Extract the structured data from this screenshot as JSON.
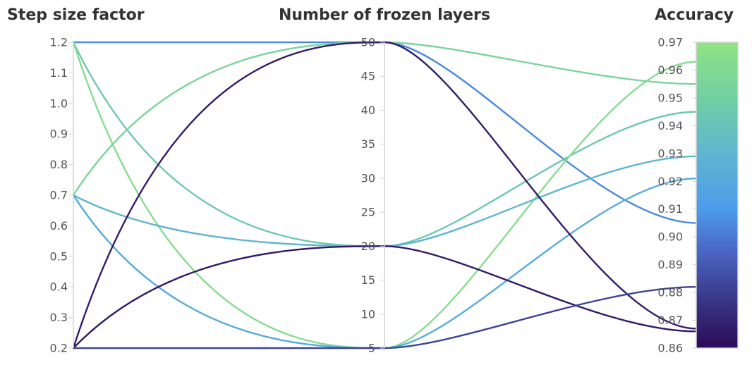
{
  "chart_data": {
    "type": "parallel-coordinates",
    "axes": [
      {
        "key": "step_size_factor",
        "label": "Step size factor",
        "range": [
          0.2,
          1.2
        ],
        "ticks": [
          "0.2",
          "0.3",
          "0.4",
          "0.5",
          "0.6",
          "0.7",
          "0.8",
          "0.9",
          "1.0",
          "1.1",
          "1.2"
        ]
      },
      {
        "key": "frozen_layers",
        "label": "Number of frozen layers",
        "range": [
          5,
          50
        ],
        "ticks": [
          "5",
          "10",
          "15",
          "20",
          "25",
          "30",
          "35",
          "40",
          "45",
          "50"
        ]
      },
      {
        "key": "accuracy",
        "label": "Accuracy",
        "range": [
          0.86,
          0.97
        ],
        "ticks": [
          "0.86",
          "0.87",
          "0.88",
          "0.89",
          "0.90",
          "0.91",
          "0.92",
          "0.93",
          "0.94",
          "0.95",
          "0.96",
          "0.97"
        ]
      }
    ],
    "color_scale": {
      "axis": "accuracy",
      "stops": [
        {
          "value": 0.86,
          "color": "#2c0a57"
        },
        {
          "value": 0.875,
          "color": "#36317f"
        },
        {
          "value": 0.895,
          "color": "#4a66c4"
        },
        {
          "value": 0.91,
          "color": "#4c9ceb"
        },
        {
          "value": 0.93,
          "color": "#5fb6cf"
        },
        {
          "value": 0.95,
          "color": "#72cfa2"
        },
        {
          "value": 0.97,
          "color": "#90e384"
        }
      ]
    },
    "runs": [
      {
        "step_size_factor": 1.2,
        "frozen_layers": 50,
        "accuracy": 0.905
      },
      {
        "step_size_factor": 1.2,
        "frozen_layers": 20,
        "accuracy": 0.945
      },
      {
        "step_size_factor": 1.2,
        "frozen_layers": 5,
        "accuracy": 0.963
      },
      {
        "step_size_factor": 0.7,
        "frozen_layers": 50,
        "accuracy": 0.955
      },
      {
        "step_size_factor": 0.7,
        "frozen_layers": 20,
        "accuracy": 0.929
      },
      {
        "step_size_factor": 0.7,
        "frozen_layers": 5,
        "accuracy": 0.921
      },
      {
        "step_size_factor": 0.2,
        "frozen_layers": 50,
        "accuracy": 0.867
      },
      {
        "step_size_factor": 0.2,
        "frozen_layers": 20,
        "accuracy": 0.866
      },
      {
        "step_size_factor": 0.2,
        "frozen_layers": 5,
        "accuracy": 0.882
      }
    ]
  }
}
